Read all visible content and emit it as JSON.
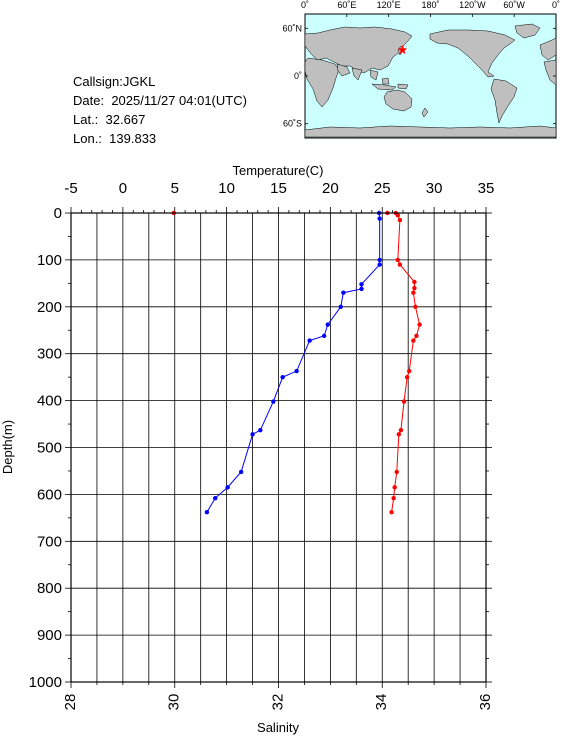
{
  "station": {
    "callsign_text": "Callsign:JGKL",
    "date_label": "Date:",
    "date_value": "2025/11/27 04:01(UTC)",
    "lat_label": "Lat.:",
    "lat_value": "32.667",
    "lon_label": "Lon.:",
    "lon_value": "139.833"
  },
  "map": {
    "lon_labels": [
      "0˚",
      "60˚E",
      "120˚E",
      "180˚",
      "120˚W",
      "60˚W",
      "0˚"
    ],
    "lat_labels": [
      "60˚N",
      "0˚",
      "60˚S"
    ],
    "ocean_color": "#ccffff",
    "land_color": "#bfbfbf",
    "marker_color": "#ff0000",
    "marker_lon": 139.833,
    "marker_lat": 32.667
  },
  "chart_data": {
    "type": "line",
    "top_axis_label": "Temperature(C)",
    "bottom_axis_label": "Salinity",
    "ylabel": "Depth(m)",
    "temperature_range": [
      -5,
      35
    ],
    "salinity_range": [
      28,
      36
    ],
    "depth_range": [
      0,
      1000
    ],
    "temperature_ticks": [
      "-5",
      "0",
      "5",
      "10",
      "15",
      "20",
      "25",
      "30",
      "35"
    ],
    "salinity_ticks": [
      "28",
      "30",
      "32",
      "34",
      "36"
    ],
    "depth_ticks": [
      "0",
      "100",
      "200",
      "300",
      "400",
      "500",
      "600",
      "700",
      "800",
      "900",
      "1000"
    ],
    "grid": true,
    "series": [
      {
        "kind": "temperature",
        "color": "#ff0000",
        "points": [
          [
            4.9,
            0
          ],
          [
            25.5,
            0
          ],
          [
            26.3,
            0
          ],
          [
            26.5,
            5
          ],
          [
            26.7,
            15
          ],
          [
            26.5,
            100
          ],
          [
            26.7,
            110
          ],
          [
            28.1,
            147
          ],
          [
            28.1,
            160
          ],
          [
            28.0,
            170
          ],
          [
            28.2,
            200
          ],
          [
            28.6,
            238
          ],
          [
            28.3,
            262
          ],
          [
            28.0,
            272
          ],
          [
            27.6,
            337
          ],
          [
            27.4,
            350
          ],
          [
            27.1,
            402
          ],
          [
            26.8,
            463
          ],
          [
            26.6,
            472
          ],
          [
            26.4,
            552
          ],
          [
            26.2,
            585
          ],
          [
            26.1,
            608
          ],
          [
            25.9,
            638
          ]
        ]
      },
      {
        "kind": "salinity",
        "color": "#0000ff",
        "points": [
          [
            33.94,
            0
          ],
          [
            33.95,
            12
          ],
          [
            33.95,
            100
          ],
          [
            33.95,
            110
          ],
          [
            33.6,
            152
          ],
          [
            33.6,
            162
          ],
          [
            33.25,
            170
          ],
          [
            33.2,
            200
          ],
          [
            32.95,
            238
          ],
          [
            32.88,
            262
          ],
          [
            32.6,
            272
          ],
          [
            32.35,
            337
          ],
          [
            32.08,
            350
          ],
          [
            31.9,
            402
          ],
          [
            31.65,
            463
          ],
          [
            31.5,
            472
          ],
          [
            31.28,
            552
          ],
          [
            31.02,
            585
          ],
          [
            30.78,
            608
          ],
          [
            30.62,
            638
          ]
        ]
      }
    ]
  }
}
